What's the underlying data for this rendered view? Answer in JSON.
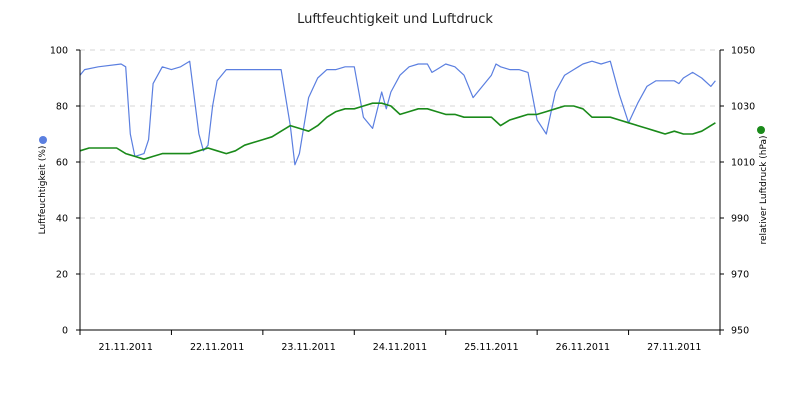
{
  "chart_data": {
    "type": "line",
    "title": "Luftfeuchtigkeit und Luftdruck",
    "x_tick_labels": [
      "21.11.2011",
      "22.11.2011",
      "23.11.2011",
      "24.11.2011",
      "25.11.2011",
      "26.11.2011",
      "27.11.2011"
    ],
    "y_left": {
      "label": "Luftfeuchtigkeit (%)",
      "lim": [
        0,
        100
      ],
      "ticks": [
        0,
        20,
        40,
        60,
        80,
        100
      ]
    },
    "y_right": {
      "label": "relativer Luftdruck (hPa)",
      "lim": [
        950,
        1050
      ],
      "ticks": [
        950,
        970,
        990,
        1010,
        1030,
        1050
      ]
    },
    "grid": true,
    "series": [
      {
        "color": "#5b7fe0",
        "axis": "left",
        "x": [
          0,
          0.05,
          0.2,
          0.45,
          0.5,
          0.55,
          0.6,
          0.7,
          0.75,
          0.8,
          0.9,
          1.0,
          1.1,
          1.2,
          1.3,
          1.35,
          1.4,
          1.45,
          1.5,
          1.6,
          1.7,
          1.8,
          1.9,
          2.0,
          2.1,
          2.2,
          2.3,
          2.35,
          2.4,
          2.5,
          2.6,
          2.7,
          2.8,
          2.9,
          3.0,
          3.1,
          3.2,
          3.3,
          3.35,
          3.4,
          3.5,
          3.6,
          3.7,
          3.8,
          3.85,
          3.9,
          4.0,
          4.1,
          4.2,
          4.3,
          4.4,
          4.5,
          4.55,
          4.6,
          4.7,
          4.8,
          4.9,
          5.0,
          5.1,
          5.2,
          5.3,
          5.4,
          5.45,
          5.5,
          5.6,
          5.7,
          5.8,
          5.9,
          6.0,
          6.1,
          6.2,
          6.3,
          6.4,
          6.5,
          6.55,
          6.6,
          6.7,
          6.8,
          6.9,
          6.95
        ],
        "y": [
          91,
          93,
          94,
          95,
          94,
          70,
          62,
          63,
          68,
          88,
          94,
          93,
          94,
          96,
          70,
          64,
          66,
          80,
          89,
          93,
          93,
          93,
          93,
          93,
          93,
          93,
          73,
          59,
          63,
          83,
          90,
          93,
          93,
          94,
          94,
          76,
          72,
          85,
          79,
          85,
          91,
          94,
          95,
          95,
          92,
          93,
          95,
          94,
          91,
          83,
          87,
          91,
          95,
          94,
          93,
          93,
          92,
          75,
          70,
          85,
          91,
          93,
          94,
          95,
          96,
          95,
          96,
          84,
          74,
          81,
          87,
          89,
          89,
          89,
          88,
          90,
          92,
          90,
          87,
          89
        ]
      },
      {
        "color": "#1a8a1a",
        "axis": "right",
        "x": [
          0,
          0.1,
          0.2,
          0.3,
          0.4,
          0.5,
          0.6,
          0.7,
          0.8,
          0.9,
          1.0,
          1.1,
          1.2,
          1.3,
          1.4,
          1.5,
          1.6,
          1.7,
          1.8,
          1.9,
          2.0,
          2.1,
          2.2,
          2.3,
          2.4,
          2.5,
          2.6,
          2.7,
          2.8,
          2.9,
          3.0,
          3.1,
          3.2,
          3.3,
          3.4,
          3.5,
          3.6,
          3.7,
          3.8,
          3.9,
          4.0,
          4.1,
          4.2,
          4.3,
          4.4,
          4.5,
          4.6,
          4.7,
          4.8,
          4.9,
          5.0,
          5.1,
          5.2,
          5.3,
          5.4,
          5.5,
          5.6,
          5.7,
          5.8,
          5.9,
          6.0,
          6.1,
          6.2,
          6.3,
          6.4,
          6.5,
          6.6,
          6.7,
          6.8,
          6.9,
          6.95
        ],
        "y": [
          1014,
          1015,
          1015,
          1015,
          1015,
          1013,
          1012,
          1011,
          1012,
          1013,
          1013,
          1013,
          1013,
          1014,
          1015,
          1014,
          1013,
          1014,
          1016,
          1017,
          1018,
          1019,
          1021,
          1023,
          1022,
          1021,
          1023,
          1026,
          1028,
          1029,
          1029,
          1030,
          1031,
          1031,
          1030,
          1027,
          1028,
          1029,
          1029,
          1028,
          1027,
          1027,
          1026,
          1026,
          1026,
          1026,
          1023,
          1025,
          1026,
          1027,
          1027,
          1028,
          1029,
          1030,
          1030,
          1029,
          1026,
          1026,
          1026,
          1025,
          1024,
          1023,
          1022,
          1021,
          1020,
          1021,
          1020,
          1020,
          1021,
          1023,
          1024
        ]
      }
    ],
    "legend": "markers beside axis labels"
  }
}
